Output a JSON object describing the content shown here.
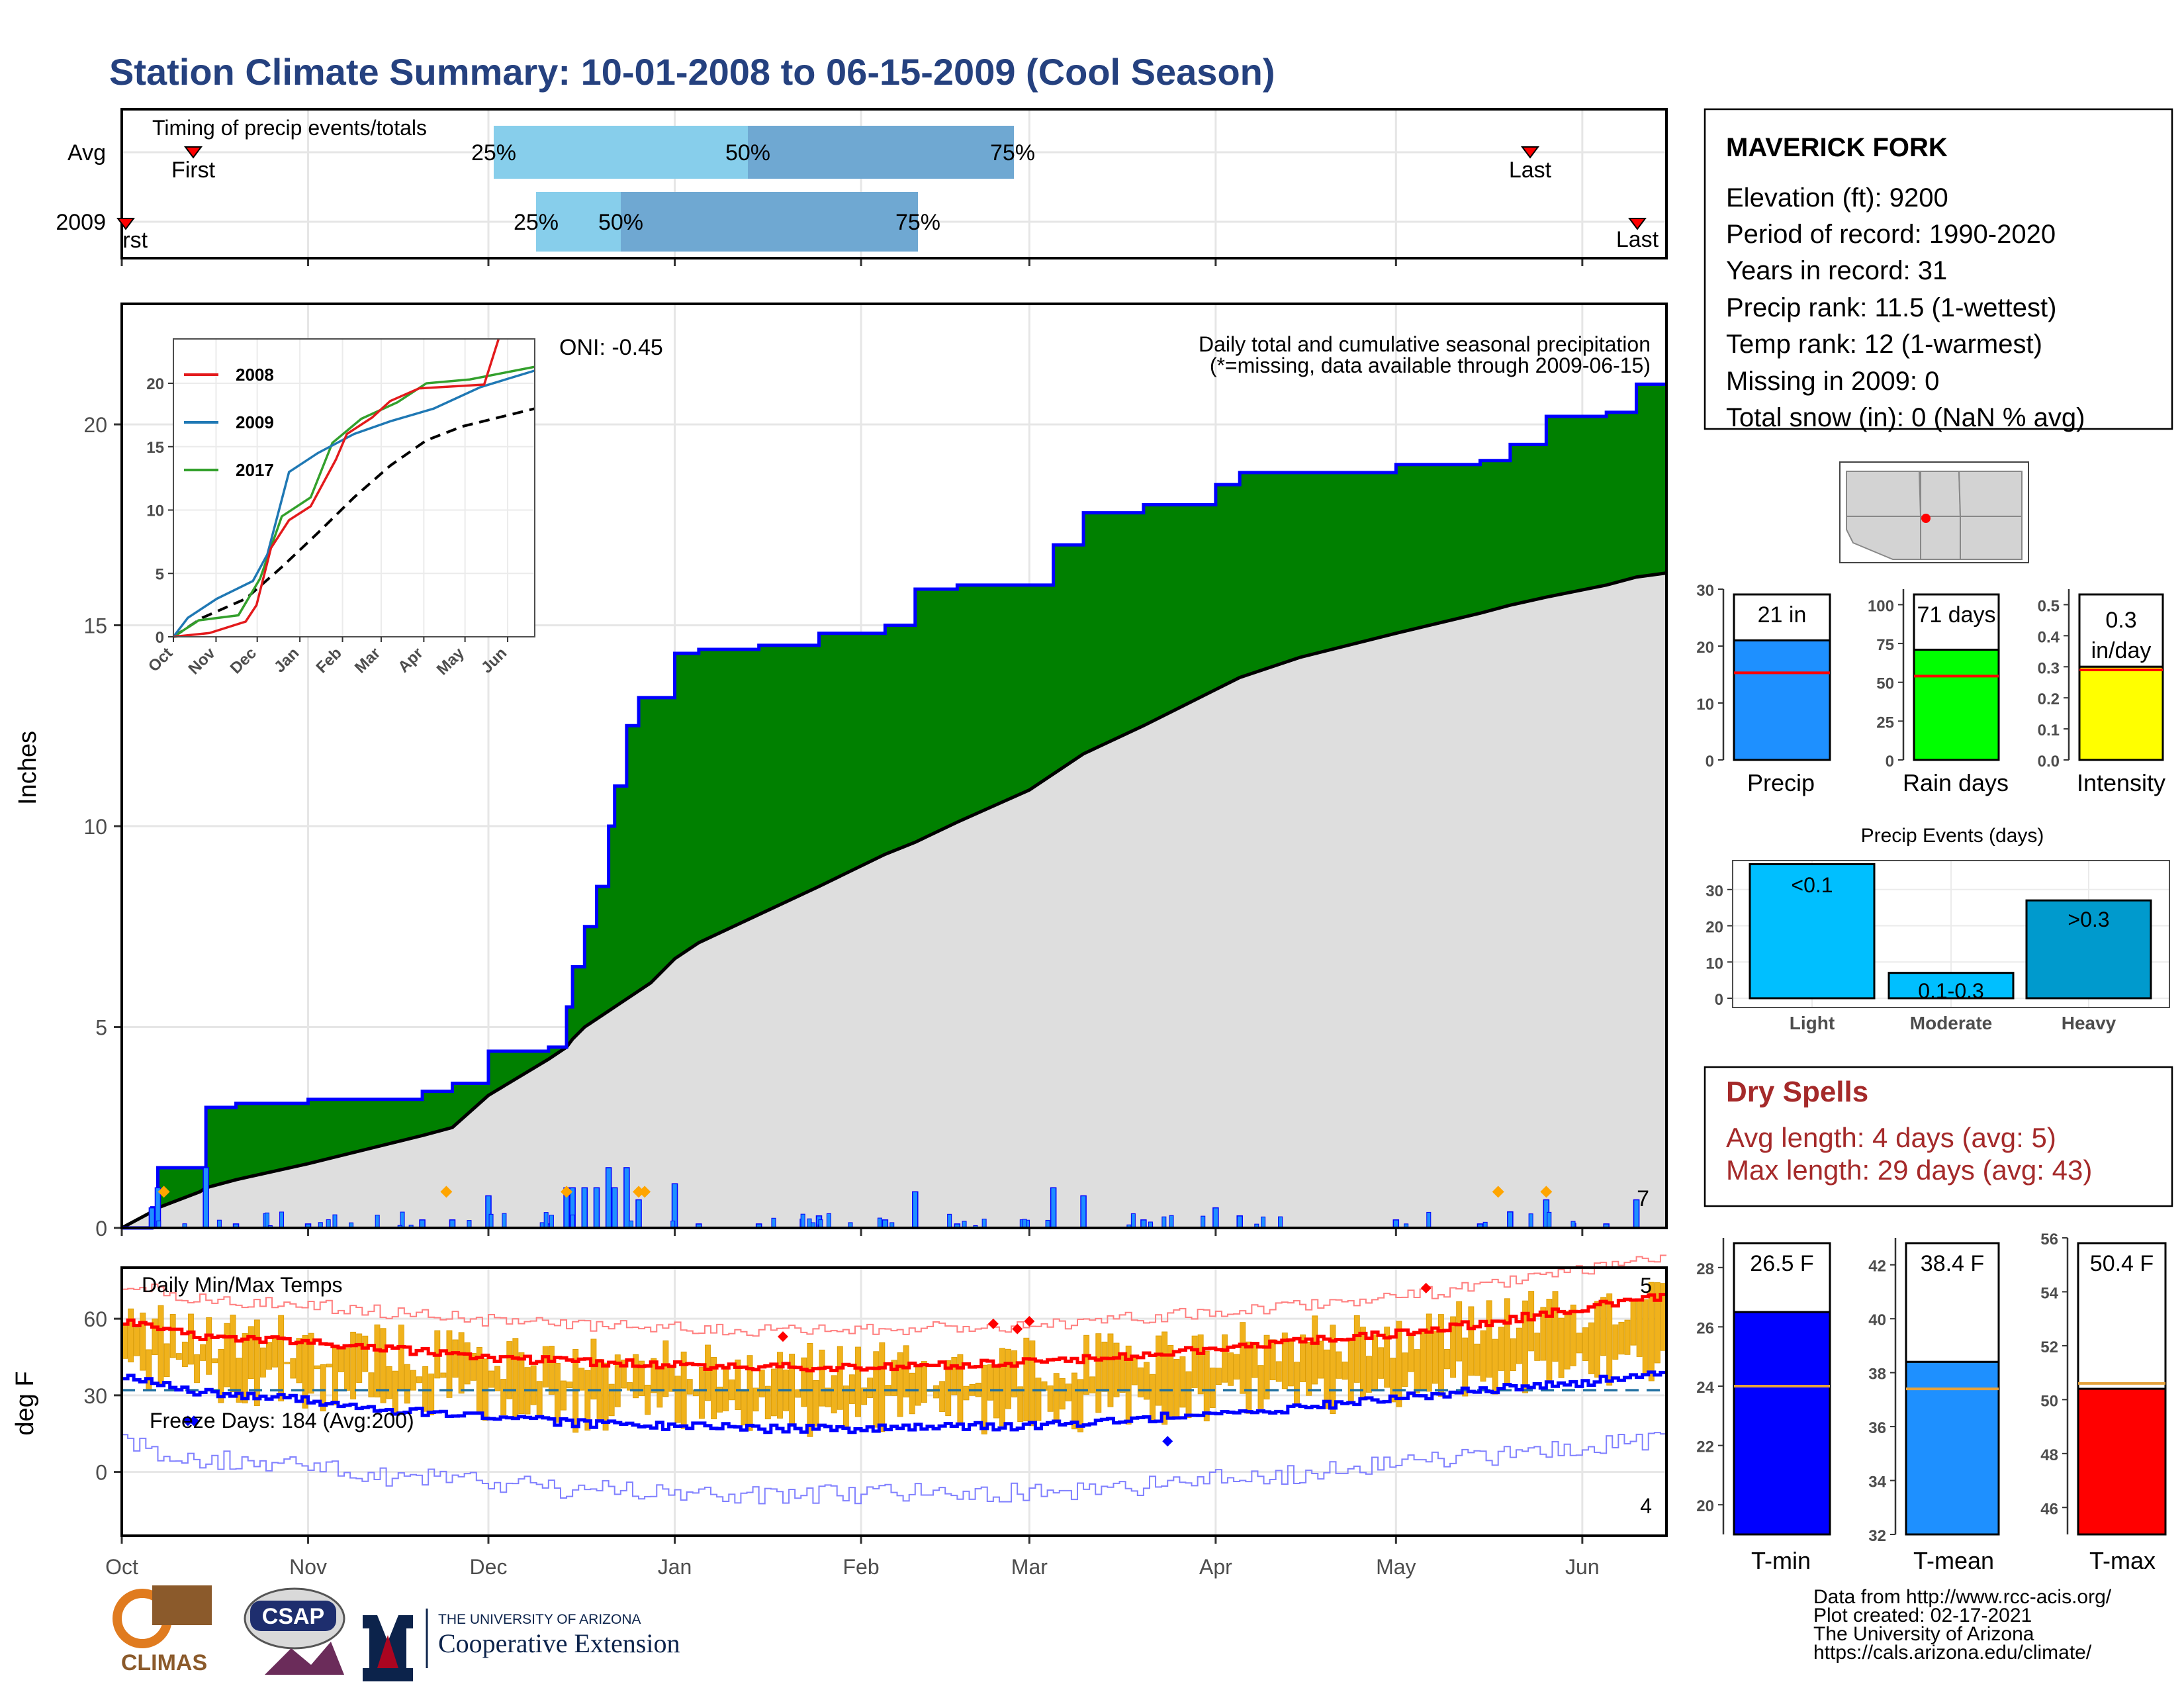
{
  "title": "Station Climate Summary: 10-01-2008 to 06-15-2009 (Cool Season)",
  "station": {
    "name": "MAVERICK FORK",
    "lines": [
      "Elevation (ft): 9200",
      "Period of record: 1990-2020",
      "Years in record: 31",
      "Precip rank: 11.5 (1-wettest)",
      "Temp rank: 12 (1-warmest)",
      "Missing in 2009: 0",
      "Total snow (in): 0 (NaN % avg)"
    ]
  },
  "timing": {
    "title": "Timing of precip events/totals",
    "rows": [
      {
        "label": "Avg",
        "first": "First",
        "last": "Last",
        "p25": "25%",
        "p50": "50%",
        "p75": "75%"
      },
      {
        "label": "2009",
        "first": "First",
        "last": "Last",
        "p25": "25%",
        "p50": "50%",
        "p75": "75%"
      }
    ]
  },
  "precip_panel": {
    "ylabel": "Inches",
    "label_top": "Daily total and cumulative seasonal precipitation",
    "label_missing": "(*=missing, data available through 2009-06-15)",
    "oni": "ONI: -0.45",
    "corner_count": "7"
  },
  "temp_panel": {
    "ylabel": "deg F",
    "label": "Daily Min/Max Temps",
    "freeze": "Freeze Days: 184 (Avg:200)",
    "count_high": "5",
    "count_low": "4"
  },
  "months": [
    "Oct",
    "Nov",
    "Dec",
    "Jan",
    "Feb",
    "Mar",
    "Apr",
    "May",
    "Jun"
  ],
  "inset": {
    "legend": [
      "2008",
      "2009",
      "2017"
    ],
    "yticks": [
      "0",
      "5",
      "10",
      "15",
      "20"
    ]
  },
  "bars_precip": {
    "labels": [
      "21 in",
      "71 days",
      "0.3 in/day"
    ],
    "categories": [
      "Precip",
      "Rain days",
      "Intensity"
    ]
  },
  "events": {
    "title": "Precip Events (days)",
    "categories": [
      "Light",
      "Moderate",
      "Heavy"
    ],
    "labels": [
      "<0.1",
      "0.1-0.3",
      ">0.3"
    ]
  },
  "dry": {
    "title": "Dry Spells",
    "avg": "Avg length: 4 days (avg: 5)",
    "max": "Max length: 29 days (avg: 43)"
  },
  "temp_bars": {
    "labels": [
      "26.5 F",
      "38.4 F",
      "50.4 F"
    ],
    "categories": [
      "T-min",
      "T-mean",
      "T-max"
    ]
  },
  "footer": [
    "Data from http://www.rcc-acis.org/",
    "Plot created: 02-17-2021",
    "The University of Arizona",
    "https://cals.arizona.edu/climate/"
  ],
  "logos": {
    "climas": "CLIMAS",
    "csap": "CSAP",
    "ua_top": "THE UNIVERSITY OF ARIZONA",
    "ua_bottom": "Cooperative Extension"
  },
  "colors": {
    "title": "#25417f",
    "cum_fill": "#008000",
    "cum_line": "#0000ff",
    "avg_fill": "#dedede",
    "tmax": "#ff0000",
    "tmin": "#0000ff",
    "range": "#f0b21c",
    "precip_bar": "#1e90ff",
    "raindays_bar": "#00ff00",
    "intensity_bar": "#ffff00",
    "light_bar": "#00bfff",
    "moderate_bar": "#00bfff",
    "heavy_bar": "#009acd",
    "tmin_bar": "#0000ff",
    "tmean_bar": "#1e90ff",
    "tmax_bar": "#ff0000",
    "dry_text": "#a52a2a"
  },
  "chart_data": [
    {
      "type": "area",
      "title": "Daily total and cumulative seasonal precipitation",
      "ylabel": "Inches",
      "ylim": [
        0,
        23
      ],
      "x_dates": [
        "2008-10-01",
        "2008-10-06",
        "2008-10-07",
        "2008-10-14",
        "2008-10-15",
        "2008-10-20",
        "2008-11-01",
        "2008-11-20",
        "2008-11-25",
        "2008-12-01",
        "2008-12-11",
        "2008-12-14",
        "2008-12-15",
        "2008-12-17",
        "2008-12-19",
        "2008-12-21",
        "2008-12-22",
        "2008-12-24",
        "2008-12-26",
        "2008-12-28",
        "2009-01-01",
        "2009-01-05",
        "2009-01-15",
        "2009-01-25",
        "2009-02-05",
        "2009-02-10",
        "2009-02-17",
        "2009-03-01",
        "2009-03-05",
        "2009-03-10",
        "2009-03-20",
        "2009-04-01",
        "2009-04-05",
        "2009-04-15",
        "2009-05-01",
        "2009-05-15",
        "2009-05-20",
        "2009-05-26",
        "2009-06-05",
        "2009-06-10",
        "2009-06-15"
      ],
      "series": [
        {
          "name": "2009",
          "values": [
            0.0,
            0.5,
            1.5,
            1.5,
            3.0,
            3.1,
            3.2,
            3.4,
            3.6,
            4.4,
            4.5,
            5.5,
            6.5,
            7.5,
            8.5,
            10.0,
            11.0,
            12.5,
            13.2,
            13.2,
            14.3,
            14.4,
            14.5,
            14.8,
            15.0,
            15.9,
            16.0,
            16.0,
            17.0,
            17.8,
            18.0,
            18.5,
            18.8,
            18.8,
            19.0,
            19.1,
            19.5,
            20.2,
            20.3,
            21.0,
            21.0
          ]
        },
        {
          "name": "Avg",
          "values": [
            0.0,
            0.4,
            0.5,
            0.9,
            1.0,
            1.2,
            1.6,
            2.3,
            2.5,
            3.3,
            4.2,
            4.5,
            4.7,
            5.0,
            5.2,
            5.4,
            5.5,
            5.7,
            5.9,
            6.1,
            6.7,
            7.1,
            7.8,
            8.5,
            9.3,
            9.6,
            10.1,
            10.9,
            11.3,
            11.8,
            12.5,
            13.4,
            13.7,
            14.2,
            14.8,
            15.3,
            15.5,
            15.7,
            16.0,
            16.2,
            16.3
          ]
        }
      ]
    },
    {
      "type": "line",
      "title": "Daily Min/Max Temps",
      "ylabel": "deg F",
      "x_dates": [
        "2008-10-01",
        "2008-10-15",
        "2008-11-01",
        "2008-11-15",
        "2008-12-01",
        "2008-12-15",
        "2009-01-01",
        "2009-01-15",
        "2009-02-01",
        "2009-02-15",
        "2009-03-01",
        "2009-03-15",
        "2009-04-01",
        "2009-04-15",
        "2009-05-01",
        "2009-05-15",
        "2009-06-01",
        "2009-06-15"
      ],
      "series": [
        {
          "name": "Avg Tmax",
          "values": [
            59,
            53,
            51,
            48,
            45,
            43,
            42,
            41,
            41,
            42,
            43,
            45,
            48,
            51,
            54,
            58,
            64,
            69
          ]
        },
        {
          "name": "Avg Tmin",
          "values": [
            37,
            31,
            28,
            24,
            22,
            19,
            18,
            17,
            17,
            18,
            18,
            20,
            23,
            25,
            29,
            32,
            35,
            39
          ]
        }
      ]
    },
    {
      "type": "bar",
      "categories": [
        "Precip",
        "Rain days",
        "Intensity"
      ],
      "values": [
        21,
        71,
        0.3
      ],
      "averages": [
        15.3,
        54,
        0.29
      ]
    },
    {
      "type": "bar",
      "title": "Precip Events (days)",
      "categories": [
        "Light",
        "Moderate",
        "Heavy"
      ],
      "values": [
        37,
        7,
        27
      ]
    },
    {
      "type": "bar",
      "categories": [
        "T-min",
        "T-mean",
        "T-max"
      ],
      "values": [
        26.5,
        38.4,
        50.4
      ],
      "averages": [
        24.0,
        37.4,
        50.6
      ]
    }
  ]
}
